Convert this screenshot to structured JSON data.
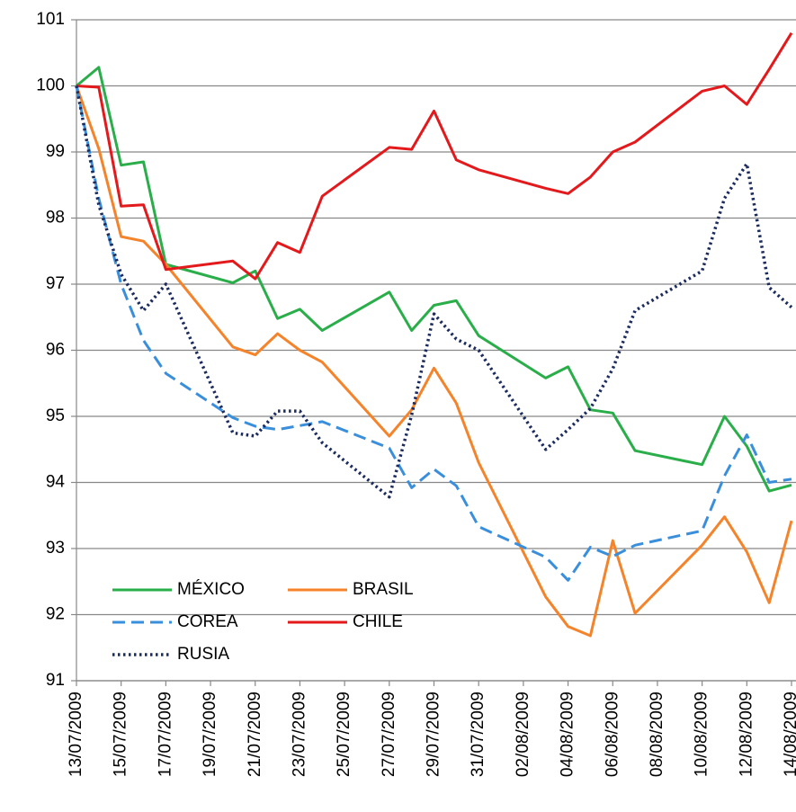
{
  "chart_data": {
    "type": "line",
    "x": [
      "13/07/2009",
      "14/07/2009",
      "15/07/2009",
      "16/07/2009",
      "17/07/2009",
      "20/07/2009",
      "21/07/2009",
      "22/07/2009",
      "23/07/2009",
      "24/07/2009",
      "27/07/2009",
      "28/07/2009",
      "29/07/2009",
      "30/07/2009",
      "31/07/2009",
      "03/08/2009",
      "04/08/2009",
      "05/08/2009",
      "06/08/2009",
      "07/08/2009",
      "10/08/2009",
      "11/08/2009",
      "12/08/2009",
      "13/08/2009",
      "14/08/2009"
    ],
    "series": [
      {
        "name": "MÉXICO",
        "color": "#2aae4a",
        "dash": "solid",
        "values": [
          100,
          100.28,
          98.8,
          98.85,
          97.3,
          97.02,
          97.2,
          96.48,
          96.62,
          96.3,
          96.88,
          96.3,
          96.68,
          96.75,
          96.22,
          95.58,
          95.75,
          95.1,
          95.05,
          94.48,
          94.27,
          95.0,
          94.55,
          93.87,
          93.96
        ]
      },
      {
        "name": "BRASIL",
        "color": "#f5832a",
        "dash": "solid",
        "values": [
          100,
          99.05,
          97.72,
          97.65,
          97.3,
          96.05,
          95.93,
          96.25,
          96.0,
          95.82,
          94.7,
          95.1,
          95.73,
          95.2,
          94.3,
          92.27,
          91.82,
          91.68,
          93.12,
          92.02,
          93.05,
          93.48,
          92.95,
          92.18,
          93.42
        ]
      },
      {
        "name": "COREA",
        "color": "#3a8fdc",
        "dash": "dash",
        "values": [
          100,
          98.3,
          97.0,
          96.15,
          95.65,
          94.98,
          94.85,
          94.8,
          94.86,
          94.92,
          94.52,
          93.92,
          94.2,
          93.95,
          93.33,
          92.87,
          92.52,
          93.02,
          92.88,
          93.05,
          93.27,
          94.1,
          94.72,
          94.0,
          94.05
        ]
      },
      {
        "name": "CHILE",
        "color": "#e3191c",
        "dash": "solid",
        "values": [
          100,
          99.98,
          98.18,
          98.2,
          97.22,
          97.35,
          97.08,
          97.63,
          97.48,
          98.33,
          99.07,
          99.04,
          99.62,
          98.88,
          98.73,
          98.45,
          98.37,
          98.62,
          99.0,
          99.15,
          99.92,
          100.0,
          99.72,
          100.25,
          100.8
        ]
      },
      {
        "name": "RUSIA",
        "color": "#1c2b5e",
        "dash": "dot",
        "values": [
          100,
          98.2,
          97.15,
          96.6,
          97.0,
          94.75,
          94.7,
          95.08,
          95.08,
          94.6,
          93.78,
          95.02,
          96.55,
          96.17,
          96.0,
          94.5,
          94.8,
          95.12,
          95.72,
          96.6,
          97.2,
          98.3,
          98.82,
          96.95,
          96.65
        ]
      }
    ],
    "xlim": [
      "13/07/2009",
      "14/08/2009"
    ],
    "xticks": [
      "13/07/2009",
      "15/07/2009",
      "17/07/2009",
      "19/07/2009",
      "21/07/2009",
      "23/07/2009",
      "25/07/2009",
      "27/07/2009",
      "29/07/2009",
      "31/07/2009",
      "02/08/2009",
      "04/08/2009",
      "06/08/2009",
      "08/08/2009",
      "10/08/2009",
      "12/08/2009",
      "14/08/2009"
    ],
    "ylim": [
      91,
      101
    ],
    "yticks": [
      91,
      92,
      93,
      94,
      95,
      96,
      97,
      98,
      99,
      100,
      101
    ],
    "grid": true,
    "legend": "lower left"
  }
}
